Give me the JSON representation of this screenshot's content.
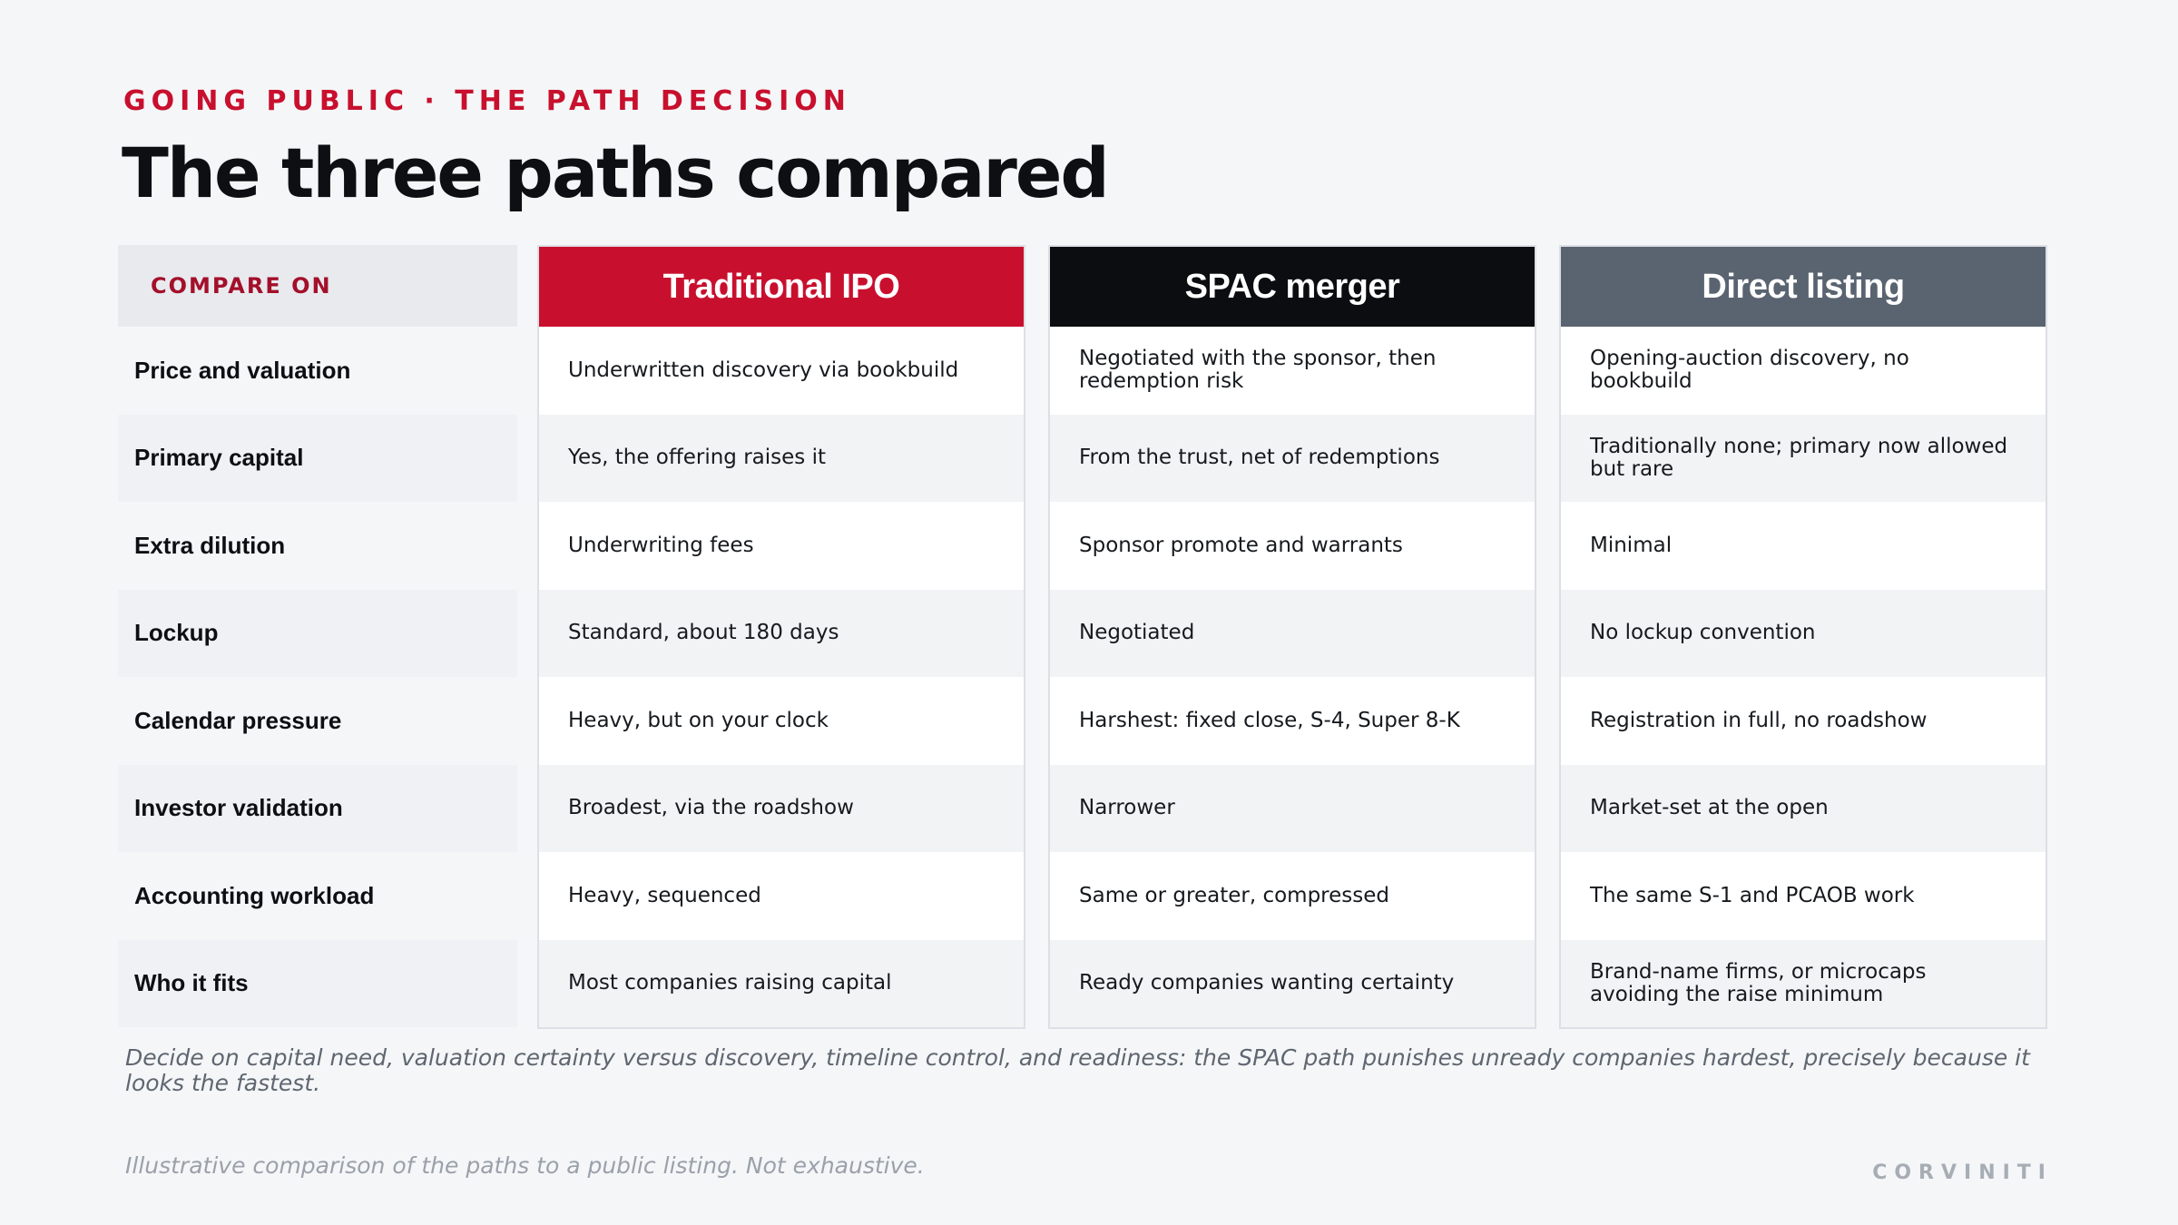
{
  "header": {
    "eyebrow": "GOING PUBLIC · THE PATH DECISION",
    "title": "The three paths compared"
  },
  "table": {
    "compare_label": "COMPARE ON",
    "rows": [
      "Price and valuation",
      "Primary capital",
      "Extra dilution",
      "Lockup",
      "Calendar pressure",
      "Investor validation",
      "Accounting workload",
      "Who it fits"
    ],
    "columns": [
      {
        "name": "Traditional IPO",
        "color": "#c8102e",
        "cells": [
          "Underwritten discovery via bookbuild",
          "Yes, the offering raises it",
          "Underwriting fees",
          "Standard, about 180 days",
          "Heavy, but on your clock",
          "Broadest, via the roadshow",
          "Heavy, sequenced",
          "Most companies raising capital"
        ]
      },
      {
        "name": "SPAC merger",
        "color": "#0c0d10",
        "cells": [
          "Negotiated with the sponsor, then redemption risk",
          "From the trust, net of redemptions",
          "Sponsor promote and warrants",
          "Negotiated",
          "Harshest: fixed close, S-4, Super 8-K",
          "Narrower",
          "Same or greater, compressed",
          "Ready companies wanting certainty"
        ]
      },
      {
        "name": "Direct listing",
        "color": "#5a6370",
        "cells": [
          "Opening-auction discovery, no bookbuild",
          "Traditionally none; primary now allowed but rare",
          "Minimal",
          "No lockup convention",
          "Registration in full, no roadshow",
          "Market-set at the open",
          "The same S-1 and PCAOB work",
          "Brand-name firms, or microcaps avoiding the raise minimum"
        ]
      }
    ]
  },
  "footer": {
    "takeaway": "Decide on capital need, valuation certainty versus discovery, timeline control, and readiness: the SPAC path punishes unready companies hardest, precisely because it looks the fastest.",
    "source": "Illustrative comparison of the paths to a public listing. Not exhaustive.",
    "brand": "CORVINITI"
  }
}
